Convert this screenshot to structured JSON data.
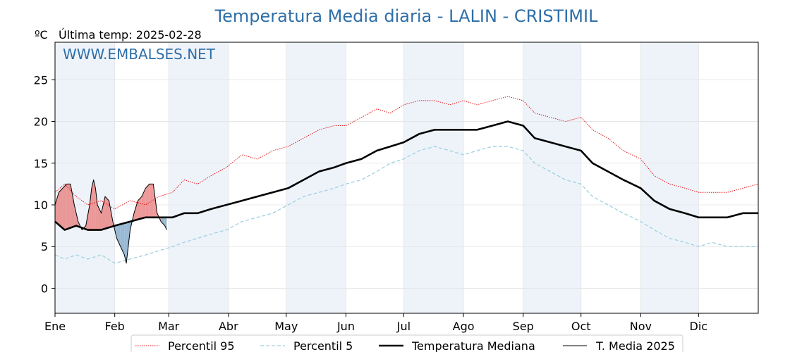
{
  "chart_data": {
    "type": "line",
    "title": "Temperatura Media diaria - LALIN - CRISTIMIL",
    "unit_label": "ºC",
    "subtitle": "Última temp: 2025-02-28",
    "watermark": "WWW.EMBALSES.NET",
    "xlabel": "",
    "ylabel": "",
    "x_day_range": [
      1,
      366
    ],
    "ylim": [
      -3,
      29.5
    ],
    "yticks": [
      0,
      5,
      10,
      15,
      20,
      25
    ],
    "months": [
      "Ene",
      "Feb",
      "Mar",
      "Abr",
      "May",
      "Jun",
      "Jul",
      "Ago",
      "Sep",
      "Oct",
      "Nov",
      "Dic"
    ],
    "month_start_days": [
      1,
      32,
      60,
      91,
      121,
      152,
      182,
      213,
      244,
      274,
      305,
      335
    ],
    "shaded_months": [
      "Ene",
      "Mar",
      "May",
      "Jul",
      "Sep",
      "Nov"
    ],
    "grid": true,
    "legend_position": "bottom-center",
    "colors": {
      "p95": "#e41a1c",
      "p5": "#9fd0e0",
      "median": "#000000",
      "current": "#000000",
      "above_fill": "#e88080",
      "below_fill": "#7fa8c9",
      "month_band": "#eef3fa",
      "title": "#2f6fa8"
    },
    "series": [
      {
        "name": "Percentil 95",
        "style": "dotted",
        "points": [
          [
            1,
            11.5
          ],
          [
            6,
            12.5
          ],
          [
            12,
            11.0
          ],
          [
            18,
            10.0
          ],
          [
            25,
            10.5
          ],
          [
            32,
            9.5
          ],
          [
            40,
            10.5
          ],
          [
            48,
            10.0
          ],
          [
            55,
            11.0
          ],
          [
            62,
            11.5
          ],
          [
            68,
            13.0
          ],
          [
            75,
            12.5
          ],
          [
            82,
            13.5
          ],
          [
            90,
            14.5
          ],
          [
            98,
            16.0
          ],
          [
            106,
            15.5
          ],
          [
            114,
            16.5
          ],
          [
            122,
            17.0
          ],
          [
            130,
            18.0
          ],
          [
            138,
            19.0
          ],
          [
            146,
            19.5
          ],
          [
            152,
            19.5
          ],
          [
            160,
            20.5
          ],
          [
            168,
            21.5
          ],
          [
            175,
            21.0
          ],
          [
            182,
            22.0
          ],
          [
            190,
            22.5
          ],
          [
            198,
            22.5
          ],
          [
            206,
            22.0
          ],
          [
            213,
            22.5
          ],
          [
            220,
            22.0
          ],
          [
            228,
            22.5
          ],
          [
            236,
            23.0
          ],
          [
            244,
            22.5
          ],
          [
            250,
            21.0
          ],
          [
            258,
            20.5
          ],
          [
            266,
            20.0
          ],
          [
            274,
            20.5
          ],
          [
            280,
            19.0
          ],
          [
            288,
            18.0
          ],
          [
            296,
            16.5
          ],
          [
            305,
            15.5
          ],
          [
            312,
            13.5
          ],
          [
            320,
            12.5
          ],
          [
            328,
            12.0
          ],
          [
            335,
            11.5
          ],
          [
            342,
            11.5
          ],
          [
            350,
            11.5
          ],
          [
            358,
            12.0
          ],
          [
            366,
            12.5
          ]
        ]
      },
      {
        "name": "Percentil 5",
        "style": "dashed",
        "points": [
          [
            1,
            4.0
          ],
          [
            6,
            3.5
          ],
          [
            12,
            4.0
          ],
          [
            18,
            3.5
          ],
          [
            25,
            4.0
          ],
          [
            32,
            3.0
          ],
          [
            40,
            3.5
          ],
          [
            48,
            4.0
          ],
          [
            55,
            4.5
          ],
          [
            62,
            5.0
          ],
          [
            68,
            5.5
          ],
          [
            75,
            6.0
          ],
          [
            82,
            6.5
          ],
          [
            90,
            7.0
          ],
          [
            98,
            8.0
          ],
          [
            106,
            8.5
          ],
          [
            114,
            9.0
          ],
          [
            122,
            10.0
          ],
          [
            130,
            11.0
          ],
          [
            138,
            11.5
          ],
          [
            146,
            12.0
          ],
          [
            152,
            12.5
          ],
          [
            160,
            13.0
          ],
          [
            168,
            14.0
          ],
          [
            175,
            15.0
          ],
          [
            182,
            15.5
          ],
          [
            190,
            16.5
          ],
          [
            198,
            17.0
          ],
          [
            206,
            16.5
          ],
          [
            213,
            16.0
          ],
          [
            220,
            16.5
          ],
          [
            228,
            17.0
          ],
          [
            236,
            17.0
          ],
          [
            244,
            16.5
          ],
          [
            250,
            15.0
          ],
          [
            258,
            14.0
          ],
          [
            266,
            13.0
          ],
          [
            274,
            12.5
          ],
          [
            280,
            11.0
          ],
          [
            288,
            10.0
          ],
          [
            296,
            9.0
          ],
          [
            305,
            8.0
          ],
          [
            312,
            7.0
          ],
          [
            320,
            6.0
          ],
          [
            328,
            5.5
          ],
          [
            335,
            5.0
          ],
          [
            342,
            5.5
          ],
          [
            350,
            5.0
          ],
          [
            358,
            5.0
          ],
          [
            366,
            5.0
          ]
        ]
      },
      {
        "name": "Temperatura Mediana",
        "style": "solid-thick",
        "points": [
          [
            1,
            8.0
          ],
          [
            6,
            7.0
          ],
          [
            12,
            7.5
          ],
          [
            18,
            7.0
          ],
          [
            25,
            7.0
          ],
          [
            32,
            7.5
          ],
          [
            40,
            8.0
          ],
          [
            48,
            8.5
          ],
          [
            55,
            8.5
          ],
          [
            62,
            8.5
          ],
          [
            68,
            9.0
          ],
          [
            75,
            9.0
          ],
          [
            82,
            9.5
          ],
          [
            90,
            10.0
          ],
          [
            98,
            10.5
          ],
          [
            106,
            11.0
          ],
          [
            114,
            11.5
          ],
          [
            122,
            12.0
          ],
          [
            130,
            13.0
          ],
          [
            138,
            14.0
          ],
          [
            146,
            14.5
          ],
          [
            152,
            15.0
          ],
          [
            160,
            15.5
          ],
          [
            168,
            16.5
          ],
          [
            175,
            17.0
          ],
          [
            182,
            17.5
          ],
          [
            190,
            18.5
          ],
          [
            198,
            19.0
          ],
          [
            206,
            19.0
          ],
          [
            213,
            19.0
          ],
          [
            220,
            19.0
          ],
          [
            228,
            19.5
          ],
          [
            236,
            20.0
          ],
          [
            244,
            19.5
          ],
          [
            250,
            18.0
          ],
          [
            258,
            17.5
          ],
          [
            266,
            17.0
          ],
          [
            274,
            16.5
          ],
          [
            280,
            15.0
          ],
          [
            288,
            14.0
          ],
          [
            296,
            13.0
          ],
          [
            305,
            12.0
          ],
          [
            312,
            10.5
          ],
          [
            320,
            9.5
          ],
          [
            328,
            9.0
          ],
          [
            335,
            8.5
          ],
          [
            342,
            8.5
          ],
          [
            350,
            8.5
          ],
          [
            358,
            9.0
          ],
          [
            366,
            9.0
          ]
        ]
      },
      {
        "name": "T. Media 2025",
        "style": "solid-thin",
        "points": [
          [
            1,
            10.0
          ],
          [
            3,
            11.5
          ],
          [
            5,
            12.0
          ],
          [
            7,
            12.5
          ],
          [
            9,
            12.5
          ],
          [
            11,
            10.0
          ],
          [
            13,
            8.0
          ],
          [
            15,
            7.0
          ],
          [
            17,
            7.5
          ],
          [
            19,
            10.0
          ],
          [
            20,
            12.0
          ],
          [
            21,
            13.0
          ],
          [
            22,
            12.0
          ],
          [
            23,
            10.0
          ],
          [
            25,
            9.0
          ],
          [
            27,
            11.0
          ],
          [
            29,
            10.5
          ],
          [
            31,
            8.0
          ],
          [
            33,
            6.0
          ],
          [
            35,
            5.0
          ],
          [
            37,
            4.0
          ],
          [
            38,
            3.0
          ],
          [
            40,
            7.0
          ],
          [
            42,
            9.0
          ],
          [
            44,
            10.5
          ],
          [
            46,
            11.0
          ],
          [
            48,
            12.0
          ],
          [
            50,
            12.5
          ],
          [
            52,
            12.5
          ],
          [
            54,
            9.0
          ],
          [
            56,
            8.0
          ],
          [
            58,
            7.5
          ],
          [
            59,
            7.0
          ]
        ]
      }
    ]
  },
  "legend": {
    "items": [
      {
        "label": "Percentil 95"
      },
      {
        "label": "Percentil 5"
      },
      {
        "label": "Temperatura Mediana"
      },
      {
        "label": "T. Media 2025"
      }
    ]
  }
}
